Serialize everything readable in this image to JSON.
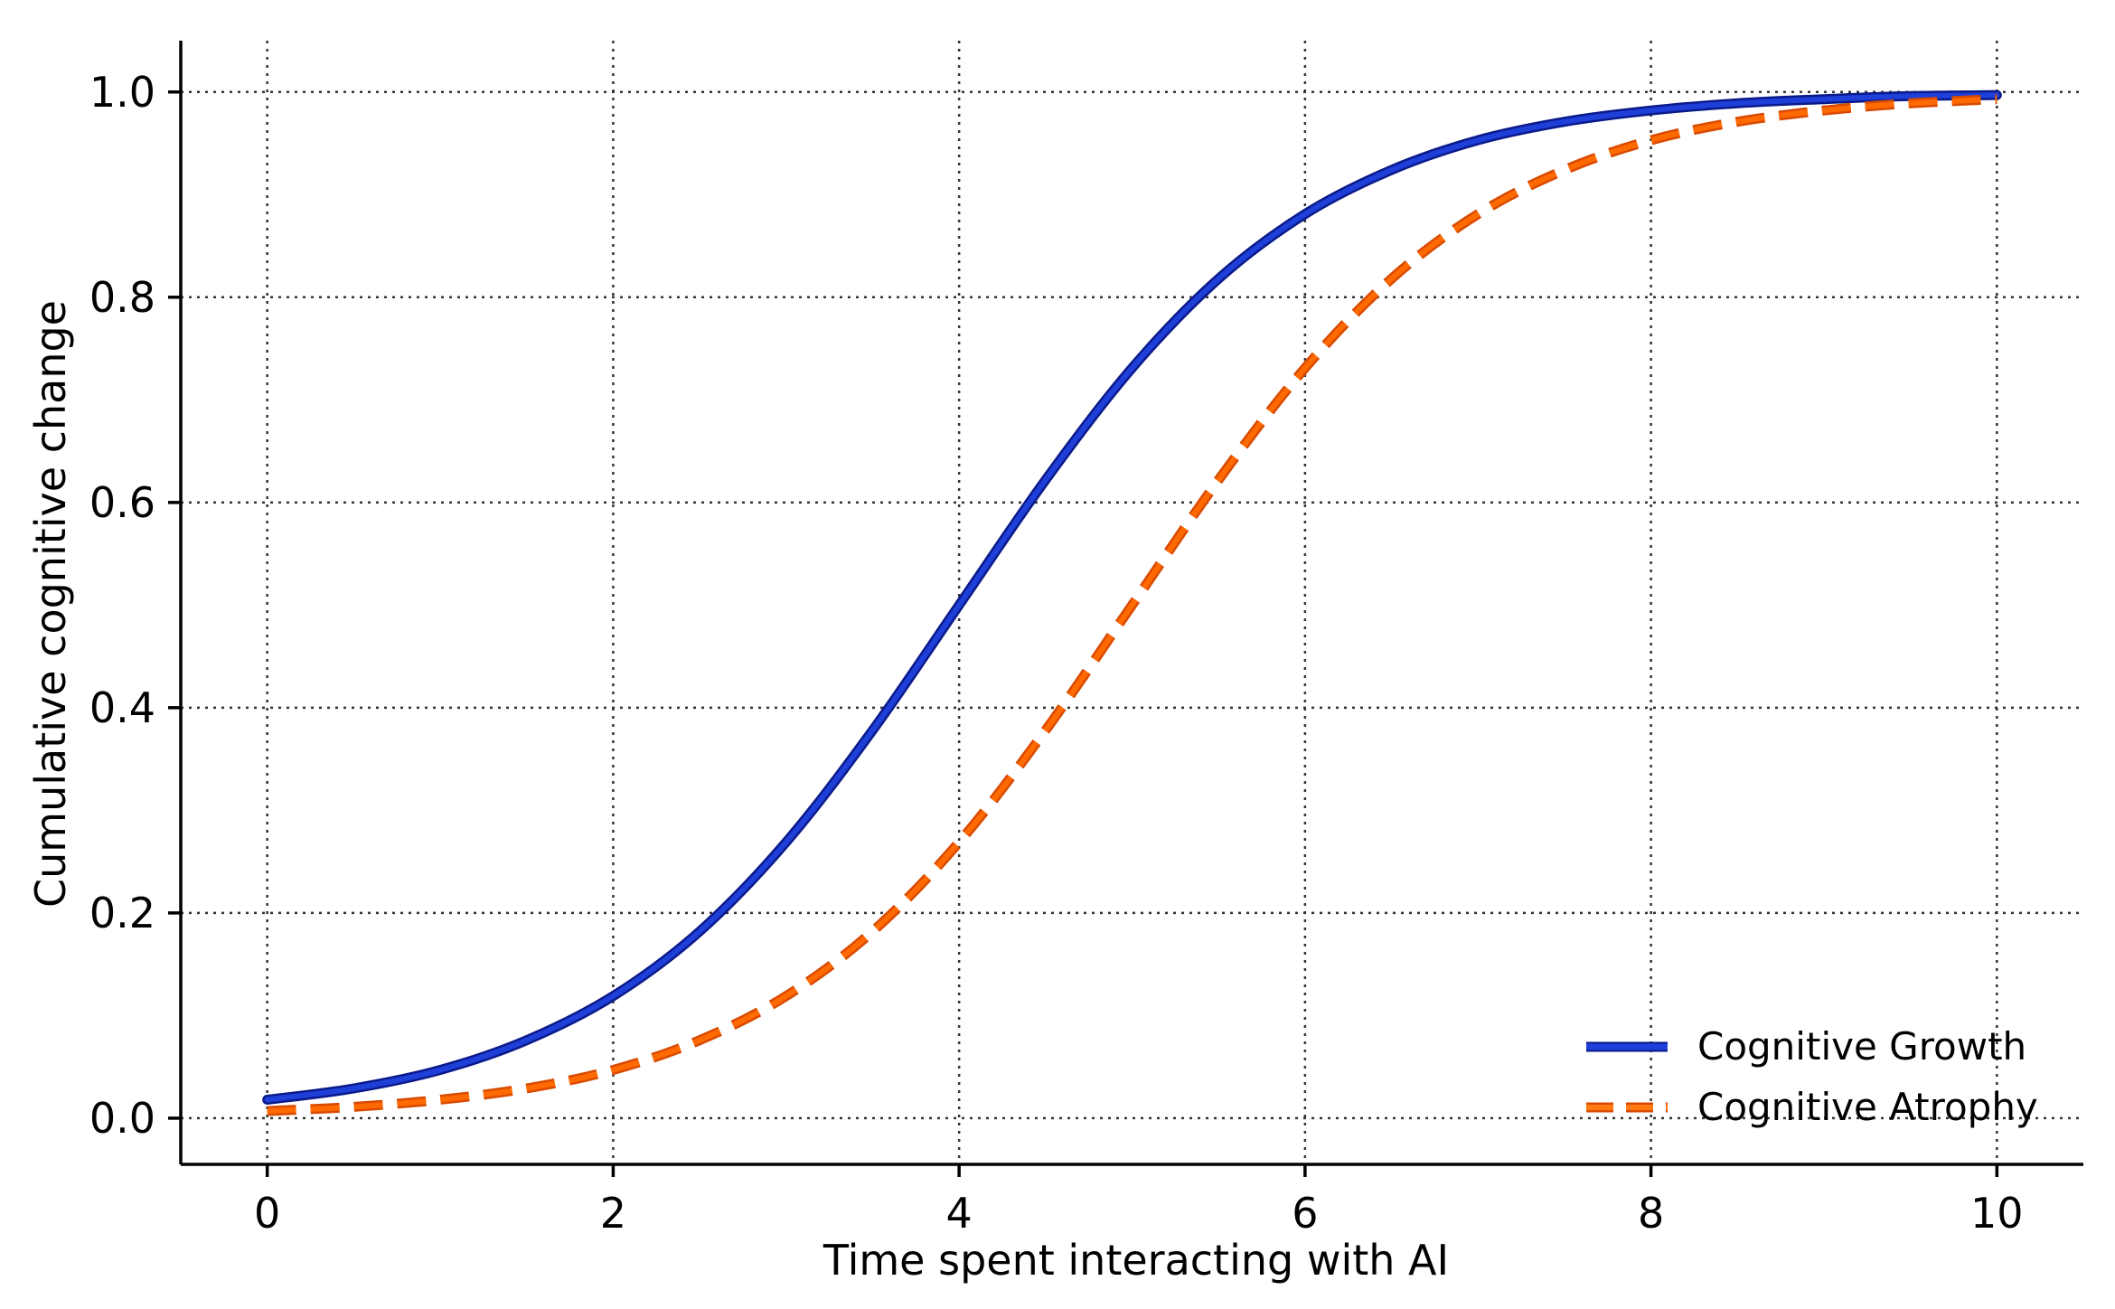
{
  "chart_data": {
    "type": "line",
    "title": "",
    "xlabel": "Time spent interacting with AI",
    "ylabel": "Cumulative cognitive change",
    "xlim": [
      -0.5,
      10.5
    ],
    "ylim": [
      -0.045,
      1.05
    ],
    "xticks": [
      0,
      2,
      4,
      6,
      8,
      10
    ],
    "xtick_labels": [
      "0",
      "2",
      "4",
      "6",
      "8",
      "10"
    ],
    "yticks": [
      0.0,
      0.2,
      0.4,
      0.6,
      0.8,
      1.0
    ],
    "ytick_labels": [
      "0.0",
      "0.2",
      "0.4",
      "0.6",
      "0.8",
      "1.0"
    ],
    "grid": true,
    "legend_position": "bottom-right",
    "x": [
      0,
      0.5,
      1,
      1.5,
      2,
      2.5,
      3,
      3.5,
      4,
      4.5,
      5,
      5.5,
      6,
      6.5,
      7,
      7.5,
      8,
      8.5,
      9,
      9.5,
      10
    ],
    "series": [
      {
        "name": "Cognitive Growth",
        "color": "#1f3fd9",
        "style": "solid",
        "values": [
          0.018,
          0.029,
          0.047,
          0.076,
          0.119,
          0.182,
          0.269,
          0.378,
          0.5,
          0.622,
          0.731,
          0.818,
          0.881,
          0.924,
          0.953,
          0.971,
          0.982,
          0.989,
          0.993,
          0.996,
          0.997
        ]
      },
      {
        "name": "Cognitive Atrophy",
        "color": "#ff6a00",
        "style": "dashed",
        "values": [
          0.007,
          0.011,
          0.018,
          0.029,
          0.047,
          0.076,
          0.119,
          0.182,
          0.269,
          0.378,
          0.5,
          0.622,
          0.731,
          0.818,
          0.881,
          0.924,
          0.953,
          0.971,
          0.982,
          0.989,
          0.993
        ]
      }
    ]
  }
}
